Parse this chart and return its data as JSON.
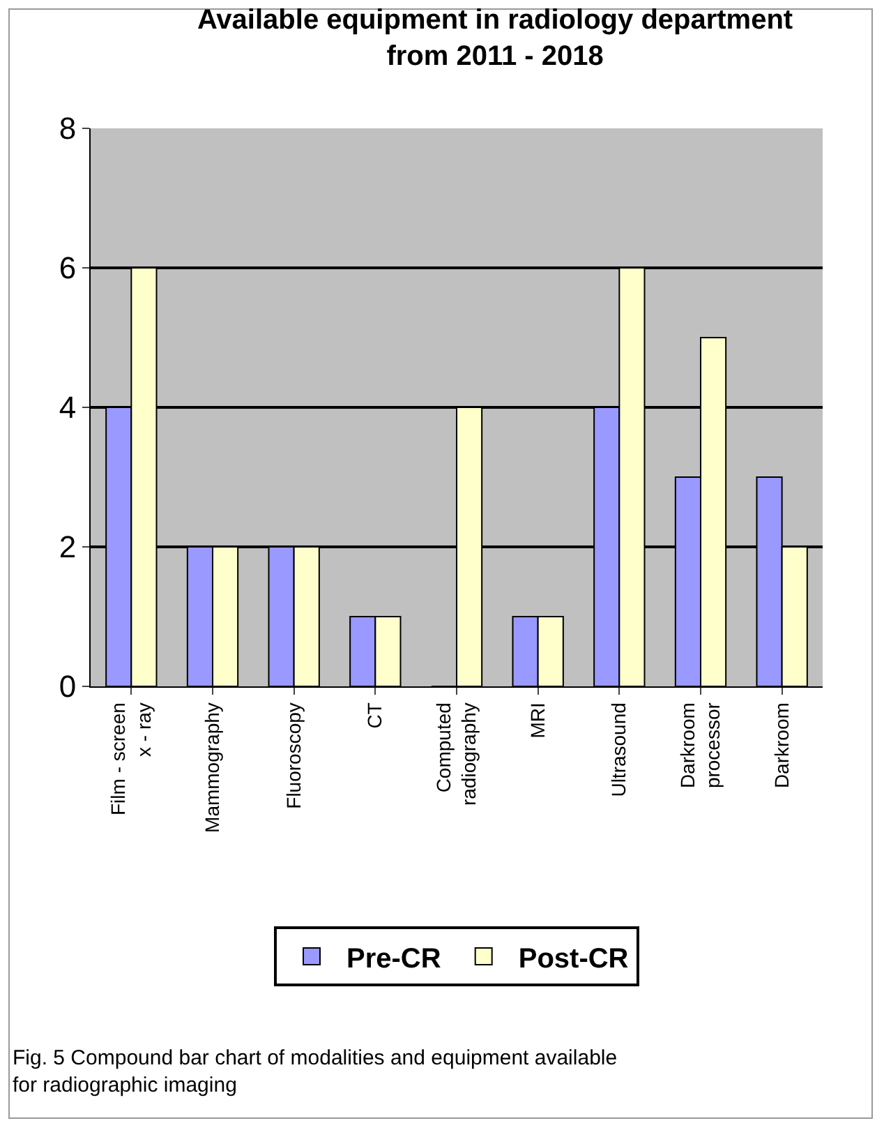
{
  "chart_data": {
    "type": "bar",
    "title": "Available equipment in radiology department from 2011 - 2018",
    "categories": [
      "Film - screen x - ray",
      "Mammography",
      "Fluoroscopy",
      "CT",
      "Computed radiography",
      "MRI",
      "Ultrasound",
      "Darkroom processor",
      "Darkroom"
    ],
    "series": [
      {
        "name": "Pre-CR",
        "color": "#9999ff",
        "values": [
          4,
          2,
          2,
          1,
          0,
          1,
          4,
          3,
          3
        ]
      },
      {
        "name": "Post-CR",
        "color": "#ffffcc",
        "values": [
          6,
          2,
          2,
          1,
          4,
          1,
          6,
          5,
          2
        ]
      }
    ],
    "ylim": [
      0,
      8
    ],
    "yticks": [
      0,
      2,
      4,
      6,
      8
    ],
    "grid": "y",
    "legend": "bottom",
    "annotations": [
      "Fig. 5 Compound bar chart of modalities and equipment available for radiographic imaging"
    ]
  }
}
